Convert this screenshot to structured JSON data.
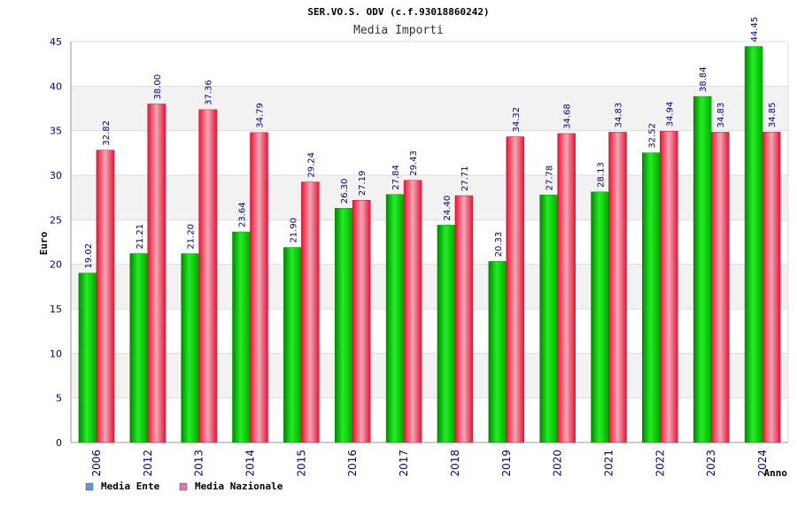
{
  "chart_data": {
    "type": "bar",
    "title": "SER.VO.S. ODV (c.f.93018860242)",
    "subtitle": "Media Importi",
    "xlabel": "Anno",
    "ylabel": "Euro",
    "ylim": [
      0,
      45
    ],
    "yticks": [
      "0",
      "5",
      "10",
      "15",
      "20",
      "25",
      "30",
      "35",
      "40",
      "45"
    ],
    "grid": "horizontal, alternating bands",
    "legend_position": "bottom-left",
    "categories": [
      "2006",
      "2012",
      "2013",
      "2014",
      "2015",
      "2016",
      "2017",
      "2018",
      "2019",
      "2020",
      "2021",
      "2022",
      "2023",
      "2024"
    ],
    "series": [
      {
        "name": "Media Ente",
        "color": "#00cc00",
        "legend_color": "#5b9bd5",
        "values": [
          19.02,
          21.21,
          21.2,
          23.64,
          21.9,
          26.3,
          27.84,
          24.4,
          20.33,
          27.78,
          28.13,
          32.52,
          38.84,
          44.45
        ],
        "labels": [
          "19.02",
          "21.21",
          "21.20",
          "23.64",
          "21.90",
          "26.30",
          "27.84",
          "24.40",
          "20.33",
          "27.78",
          "28.13",
          "32.52",
          "38.84",
          "44.45"
        ]
      },
      {
        "name": "Media Nazionale",
        "color": "#ee1133",
        "legend_color": "#d97ba8",
        "values": [
          32.82,
          38.0,
          37.36,
          34.79,
          29.24,
          27.19,
          29.43,
          27.71,
          34.32,
          34.68,
          34.83,
          34.94,
          34.83,
          34.85
        ],
        "labels": [
          "32.82",
          "38.00",
          "37.36",
          "34.79",
          "29.24",
          "27.19",
          "29.43",
          "27.71",
          "34.32",
          "34.68",
          "34.83",
          "34.94",
          "34.83",
          "34.85"
        ]
      }
    ]
  }
}
